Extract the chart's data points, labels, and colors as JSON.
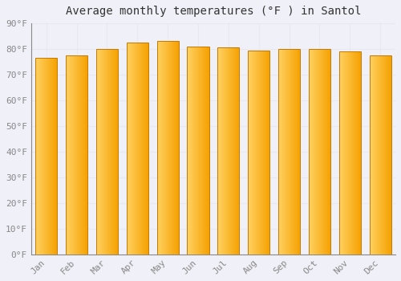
{
  "title": "Average monthly temperatures (°F ) in Santol",
  "months": [
    "Jan",
    "Feb",
    "Mar",
    "Apr",
    "May",
    "Jun",
    "Jul",
    "Aug",
    "Sep",
    "Oct",
    "Nov",
    "Dec"
  ],
  "values": [
    76.5,
    77.5,
    80.0,
    82.5,
    83.0,
    81.0,
    80.5,
    79.5,
    80.0,
    80.0,
    79.0,
    77.5
  ],
  "bar_color_left": "#FFD060",
  "bar_color_right": "#F5A000",
  "bar_border_color": "#C87800",
  "ylim": [
    0,
    90
  ],
  "yticks": [
    0,
    10,
    20,
    30,
    40,
    50,
    60,
    70,
    80,
    90
  ],
  "ytick_labels": [
    "0°F",
    "10°F",
    "20°F",
    "30°F",
    "40°F",
    "50°F",
    "60°F",
    "70°F",
    "80°F",
    "90°F"
  ],
  "background_color": "#f0f0f8",
  "grid_color": "#e8e8f0",
  "title_fontsize": 10,
  "tick_fontsize": 8,
  "font_family": "monospace",
  "tick_color": "#888888",
  "title_color": "#333333",
  "bar_width": 0.72,
  "n_gradient_strips": 60
}
